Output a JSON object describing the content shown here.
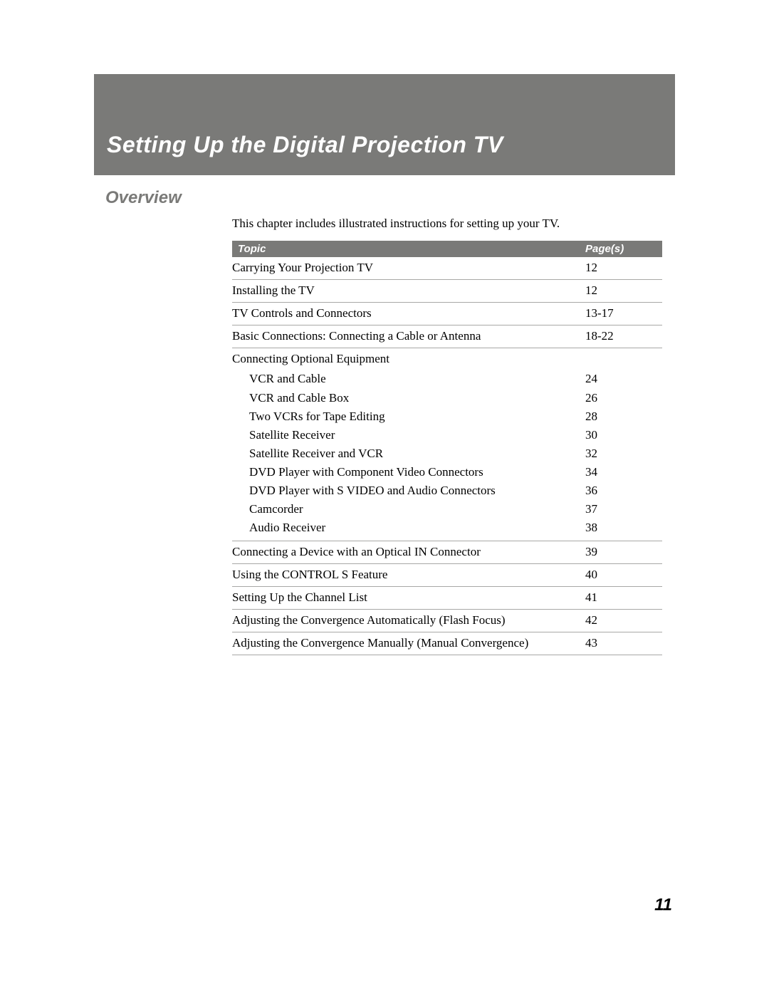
{
  "colors": {
    "bar_background": "#7a7a78",
    "bar_text": "#ffffff",
    "border": "#a8a8a6",
    "body_text": "#000000",
    "page_background": "#ffffff"
  },
  "typography": {
    "heading_font": "sans-serif bold italic",
    "body_font": "serif",
    "header_title_size_pt": 24,
    "section_title_size_pt": 18,
    "body_size_pt": 13
  },
  "header": {
    "title": "Setting Up the Digital Projection TV"
  },
  "section": {
    "title": "Overview",
    "intro": "This chapter includes illustrated instructions for setting up your TV."
  },
  "table": {
    "header": {
      "topic": "Topic",
      "pages": "Page(s)"
    },
    "rows": [
      {
        "topic": "Carrying Your Projection TV",
        "pages": "12",
        "type": "row"
      },
      {
        "topic": "Installing the TV",
        "pages": "12",
        "type": "row"
      },
      {
        "topic": "TV Controls and Connectors",
        "pages": "13-17",
        "type": "row"
      },
      {
        "topic": "Basic Connections: Connecting a Cable or Antenna",
        "pages": "18-22",
        "type": "row"
      },
      {
        "topic": "Connecting Optional Equipment",
        "pages": "",
        "type": "group_header"
      },
      {
        "topic": "VCR and Cable",
        "pages": "24",
        "type": "sub"
      },
      {
        "topic": "VCR and Cable Box",
        "pages": "26",
        "type": "sub"
      },
      {
        "topic": "Two VCRs for Tape Editing",
        "pages": "28",
        "type": "sub"
      },
      {
        "topic": "Satellite Receiver",
        "pages": "30",
        "type": "sub"
      },
      {
        "topic": "Satellite Receiver and VCR",
        "pages": "32",
        "type": "sub"
      },
      {
        "topic": "DVD Player with Component Video Connectors",
        "pages": "34",
        "type": "sub"
      },
      {
        "topic": "DVD Player with S VIDEO and Audio Connectors",
        "pages": "36",
        "type": "sub"
      },
      {
        "topic": "Camcorder",
        "pages": "37",
        "type": "sub"
      },
      {
        "topic": "Audio Receiver",
        "pages": "38",
        "type": "sub_last"
      },
      {
        "topic": "Connecting a Device with an Optical IN Connector",
        "pages": "39",
        "type": "row"
      },
      {
        "topic": "Using the CONTROL S Feature",
        "pages": "40",
        "type": "row"
      },
      {
        "topic": "Setting Up the Channel List",
        "pages": "41",
        "type": "row"
      },
      {
        "topic": "Adjusting the Convergence Automatically (Flash Focus)",
        "pages": "42",
        "type": "row"
      },
      {
        "topic": "Adjusting the Convergence Manually (Manual Convergence)",
        "pages": "43",
        "type": "row"
      }
    ]
  },
  "page_number": "11"
}
